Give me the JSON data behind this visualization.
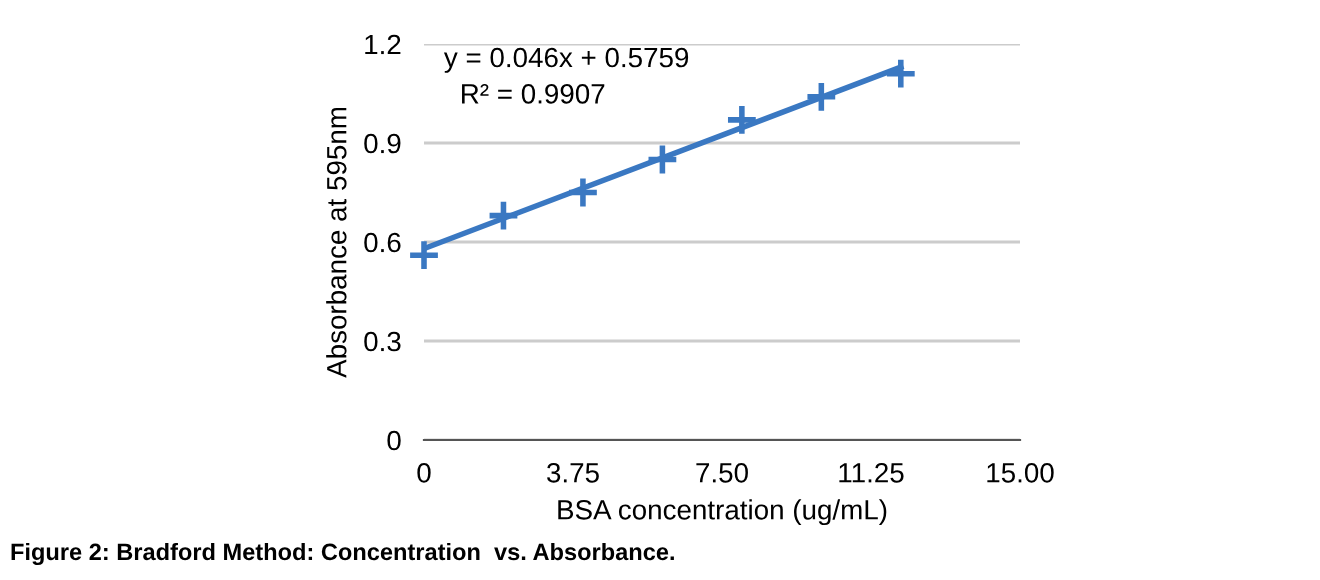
{
  "chart_data": {
    "type": "scatter",
    "xlabel": "BSA concentration (ug/mL)",
    "ylabel": "Absorbance at 595nm",
    "x": [
      0,
      2,
      4,
      6,
      8,
      10,
      12
    ],
    "series": [
      {
        "color": "#3a78c2",
        "values": [
          0.56,
          0.68,
          0.75,
          0.85,
          0.97,
          1.04,
          1.11
        ],
        "marker": "cross"
      },
      {
        "type": "line",
        "color": "#3a78c2",
        "x": [
          0,
          12
        ],
        "values": [
          0.58,
          1.13
        ],
        "marker": "none"
      }
    ],
    "xlim": [
      0,
      15
    ],
    "xticks": [
      0,
      {
        "value": 3.75,
        "label": "3.75"
      },
      {
        "value": 7.5,
        "label": "7.50"
      },
      {
        "value": 11.25,
        "label": "11.25"
      },
      {
        "value": 15,
        "label": "15.00"
      }
    ],
    "ylim": [
      0,
      1.2
    ],
    "yticks": [
      0,
      0.3,
      0.6,
      0.9,
      1.2
    ],
    "grid": "y",
    "legend": false,
    "annotations": [
      "y = 0.046x + 0.5759",
      "R² = 0.9907",
      "Figure 2: Bradford Method: Concentration  vs. Absorbance."
    ]
  }
}
